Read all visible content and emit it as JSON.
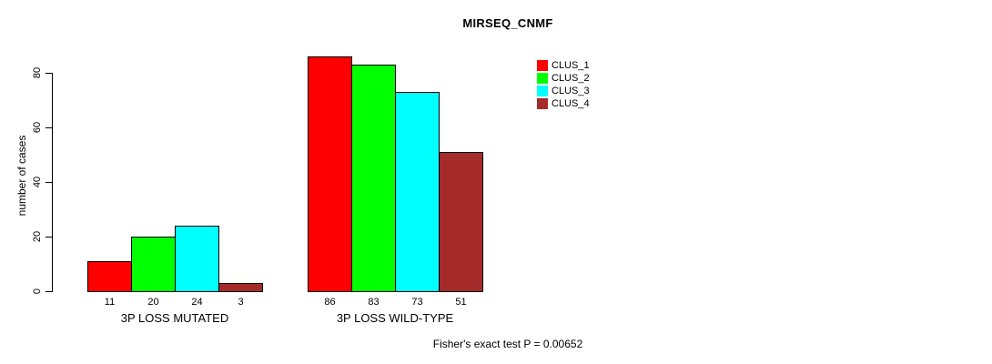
{
  "chart_data": {
    "type": "bar",
    "title": "MIRSEQ_CNMF",
    "xlabel": "",
    "ylabel": "number of cases",
    "ylim": [
      0,
      80
    ],
    "yticks": [
      0,
      20,
      40,
      60,
      80
    ],
    "grid": false,
    "legend_position": "right",
    "categories": [
      "3P LOSS MUTATED",
      "3P LOSS WILD-TYPE"
    ],
    "series": [
      {
        "name": "CLUS_1",
        "color": "#FF0000",
        "values": [
          11,
          86
        ]
      },
      {
        "name": "CLUS_2",
        "color": "#00FF00",
        "values": [
          20,
          83
        ]
      },
      {
        "name": "CLUS_3",
        "color": "#00FFFF",
        "values": [
          24,
          73
        ]
      },
      {
        "name": "CLUS_4",
        "color": "#A52A2A",
        "values": [
          3,
          51
        ]
      }
    ],
    "bar_value_labels": [
      [
        "11",
        "20",
        "24",
        "3"
      ],
      [
        "86",
        "83",
        "73",
        "51"
      ]
    ],
    "annotation": "Fisher's exact test P = 0.00652"
  }
}
